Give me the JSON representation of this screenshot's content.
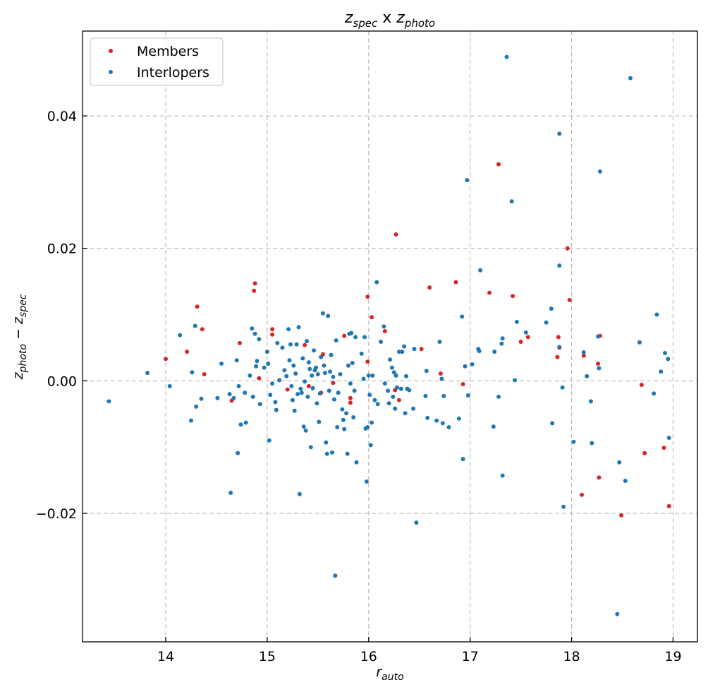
{
  "chart_data": {
    "type": "scatter",
    "title": {
      "base1": "z",
      "sub1": "spec",
      "mid": " x ",
      "base2": "z",
      "sub2": "photo"
    },
    "xlabel": {
      "base": "r",
      "sub": "auto"
    },
    "ylabel": {
      "base1": "z",
      "sub1": "photo",
      "mid": " − ",
      "base2": "z",
      "sub2": "spec"
    },
    "xlim": [
      13.18,
      19.24
    ],
    "ylim": [
      -0.0394,
      0.0528
    ],
    "xticks": [
      14,
      15,
      16,
      17,
      18,
      19
    ],
    "xtick_labels": [
      "14",
      "15",
      "16",
      "17",
      "18",
      "19"
    ],
    "yticks": [
      -0.02,
      0.0,
      0.02,
      0.04
    ],
    "ytick_labels": [
      "−0.02",
      "0.00",
      "0.02",
      "0.04"
    ],
    "grid": true,
    "legend_position": "top-left",
    "series": [
      {
        "name": "Members",
        "color": "#d62728",
        "points": [
          [
            14.0,
            0.0033
          ],
          [
            14.21,
            0.0044
          ],
          [
            14.31,
            0.0112
          ],
          [
            14.36,
            0.0078
          ],
          [
            14.38,
            0.001
          ],
          [
            14.65,
            -0.003
          ],
          [
            14.73,
            0.0057
          ],
          [
            14.88,
            0.0147
          ],
          [
            14.87,
            0.0136
          ],
          [
            14.92,
            0.0004
          ],
          [
            15.05,
            0.0078
          ],
          [
            15.05,
            0.007
          ],
          [
            15.2,
            -0.0013
          ],
          [
            15.37,
            0.0054
          ],
          [
            15.41,
            -0.0008
          ],
          [
            15.53,
            -0.0018
          ],
          [
            15.55,
            0.004
          ],
          [
            15.65,
            -0.0003
          ],
          [
            15.76,
            0.0068
          ],
          [
            15.82,
            -0.0033
          ],
          [
            15.82,
            -0.0026
          ],
          [
            15.99,
            0.0127
          ],
          [
            15.99,
            0.0029
          ],
          [
            16.03,
            0.0096
          ],
          [
            16.16,
            0.0075
          ],
          [
            16.27,
            0.0221
          ],
          [
            16.26,
            -0.0014
          ],
          [
            16.3,
            -0.0029
          ],
          [
            16.52,
            0.0048
          ],
          [
            16.6,
            0.0141
          ],
          [
            16.71,
            0.0011
          ],
          [
            16.86,
            0.0149
          ],
          [
            16.93,
            -0.0005
          ],
          [
            17.19,
            0.0133
          ],
          [
            17.28,
            0.0327
          ],
          [
            17.42,
            0.0128
          ],
          [
            17.5,
            0.0059
          ],
          [
            17.57,
            0.0066
          ],
          [
            17.86,
            0.0036
          ],
          [
            17.88,
            0.005
          ],
          [
            17.87,
            0.0066
          ],
          [
            17.96,
            0.02
          ],
          [
            17.98,
            0.0122
          ],
          [
            18.12,
            0.0038
          ],
          [
            18.28,
            0.0068
          ],
          [
            18.26,
            0.0026
          ],
          [
            18.27,
            -0.0146
          ],
          [
            18.1,
            -0.0172
          ],
          [
            18.49,
            -0.0203
          ],
          [
            18.69,
            -0.0006
          ],
          [
            18.72,
            -0.0109
          ],
          [
            18.91,
            -0.0101
          ],
          [
            18.96,
            -0.0189
          ]
        ]
      },
      {
        "name": "Interlopers",
        "color": "#1f77b4",
        "points": [
          [
            13.44,
            -0.0031
          ],
          [
            13.82,
            0.0012
          ],
          [
            14.04,
            -0.0008
          ],
          [
            14.14,
            0.0069
          ],
          [
            14.25,
            -0.006
          ],
          [
            14.26,
            0.0013
          ],
          [
            14.29,
            0.0083
          ],
          [
            14.3,
            -0.0039
          ],
          [
            14.35,
            -0.0027
          ],
          [
            14.51,
            -0.0026
          ],
          [
            14.55,
            0.0026
          ],
          [
            14.63,
            -0.002
          ],
          [
            14.64,
            -0.0169
          ],
          [
            14.67,
            -0.0026
          ],
          [
            14.7,
            0.0031
          ],
          [
            14.71,
            -0.0109
          ],
          [
            14.72,
            -0.0008
          ],
          [
            14.74,
            -0.0066
          ],
          [
            14.78,
            -0.0018
          ],
          [
            14.79,
            -0.0063
          ],
          [
            14.83,
            0.0008
          ],
          [
            14.85,
            0.0079
          ],
          [
            14.86,
            -0.0024
          ],
          [
            14.88,
            0.0071
          ],
          [
            14.89,
            0.0022
          ],
          [
            14.9,
            0.003
          ],
          [
            14.92,
            0.0063
          ],
          [
            14.93,
            -0.0035
          ],
          [
            14.97,
            0.002
          ],
          [
            15.0,
            0.0044
          ],
          [
            15.01,
            0.0026
          ],
          [
            15.02,
            -0.009
          ],
          [
            15.03,
            -0.0021
          ],
          [
            15.05,
            -0.0004
          ],
          [
            15.08,
            -0.0032
          ],
          [
            15.09,
            -0.0044
          ],
          [
            15.1,
            0.0057
          ],
          [
            15.12,
            0.0001
          ],
          [
            15.15,
            0.005
          ],
          [
            15.17,
            0.0016
          ],
          [
            15.19,
            0.0007
          ],
          [
            15.21,
            0.0078
          ],
          [
            15.22,
            0.0031
          ],
          [
            15.23,
            0.0055
          ],
          [
            15.24,
            -0.0008
          ],
          [
            15.25,
            -0.0029
          ],
          [
            15.26,
            0.0023
          ],
          [
            15.27,
            -0.0045
          ],
          [
            15.28,
            0.0011
          ],
          [
            15.29,
            0.0055
          ],
          [
            15.3,
            -0.002
          ],
          [
            15.31,
            0.0081
          ],
          [
            15.32,
            -0.0171
          ],
          [
            15.33,
            -0.0012
          ],
          [
            15.34,
            -0.0018
          ],
          [
            15.35,
            0.0034
          ],
          [
            15.36,
            -0.0069
          ],
          [
            15.37,
            -0.0001
          ],
          [
            15.38,
            -0.0075
          ],
          [
            15.39,
            0.006
          ],
          [
            15.4,
            -0.0024
          ],
          [
            15.41,
            0.0028
          ],
          [
            15.42,
            0.0018
          ],
          [
            15.43,
            -0.01
          ],
          [
            15.44,
            0.0008
          ],
          [
            15.45,
            -0.0011
          ],
          [
            15.46,
            0.0046
          ],
          [
            15.47,
            0.0016
          ],
          [
            15.48,
            0.002
          ],
          [
            15.49,
            -0.0034
          ],
          [
            15.5,
            0.001
          ],
          [
            15.51,
            -0.0062
          ],
          [
            15.52,
            -0.0019
          ],
          [
            15.53,
            0.0036
          ],
          [
            15.55,
            0.0102
          ],
          [
            15.56,
            0.0023
          ],
          [
            15.57,
            0.0012
          ],
          [
            15.58,
            -0.0093
          ],
          [
            15.59,
            -0.011
          ],
          [
            15.6,
            0.0098
          ],
          [
            15.61,
            -0.0015
          ],
          [
            15.62,
            0.0014
          ],
          [
            15.63,
            0.0039
          ],
          [
            15.64,
            -0.0108
          ],
          [
            15.65,
            0.0006
          ],
          [
            15.66,
            -0.0028
          ],
          [
            15.67,
            -0.0294
          ],
          [
            15.68,
            0.0061
          ],
          [
            15.69,
            -0.007
          ],
          [
            15.7,
            -0.0018
          ],
          [
            15.72,
            0.001
          ],
          [
            15.74,
            -0.0043
          ],
          [
            15.75,
            -0.0059
          ],
          [
            15.76,
            -0.0073
          ],
          [
            15.78,
            -0.0049
          ],
          [
            15.79,
            -0.011
          ],
          [
            15.8,
            0.0023
          ],
          [
            15.81,
            0.0071
          ],
          [
            15.82,
            -0.0004
          ],
          [
            15.83,
            0.0072
          ],
          [
            15.84,
            0.0027
          ],
          [
            15.85,
            -0.0055
          ],
          [
            15.86,
            -0.0015
          ],
          [
            15.87,
            0.0066
          ],
          [
            15.88,
            -0.0123
          ],
          [
            15.93,
            0.0041
          ],
          [
            15.95,
            0.0003
          ],
          [
            15.96,
            0.0066
          ],
          [
            15.97,
            -0.0072
          ],
          [
            15.98,
            -0.0152
          ],
          [
            15.99,
            -0.007
          ],
          [
            16.0,
            0.0008
          ],
          [
            16.01,
            -0.0021
          ],
          [
            16.02,
            -0.0097
          ],
          [
            16.03,
            -0.0063
          ],
          [
            16.04,
            0.0008
          ],
          [
            16.06,
            -0.0029
          ],
          [
            16.08,
            0.0149
          ],
          [
            16.09,
            -0.0035
          ],
          [
            16.12,
            0.0059
          ],
          [
            16.15,
            0.0082
          ],
          [
            16.16,
            -0.0004
          ],
          [
            16.19,
            -0.0015
          ],
          [
            16.2,
            -0.0034
          ],
          [
            16.21,
            0.0032
          ],
          [
            16.23,
            0.002
          ],
          [
            16.24,
            -0.0024
          ],
          [
            16.25,
            0.0013
          ],
          [
            16.26,
            -0.0042
          ],
          [
            16.27,
            0.0008
          ],
          [
            16.28,
            -0.001
          ],
          [
            16.3,
            0.0044
          ],
          [
            16.32,
            -0.0012
          ],
          [
            16.33,
            0.0044
          ],
          [
            16.35,
            0.0052
          ],
          [
            16.36,
            -0.0049
          ],
          [
            16.37,
            0.0007
          ],
          [
            16.38,
            -0.0012
          ],
          [
            16.4,
            -0.0014
          ],
          [
            16.44,
            -0.0042
          ],
          [
            16.45,
            0.0048
          ],
          [
            16.47,
            -0.0214
          ],
          [
            16.56,
            -0.0023
          ],
          [
            16.57,
            0.0015
          ],
          [
            16.58,
            -0.0056
          ],
          [
            16.67,
            -0.006
          ],
          [
            16.7,
            0.0059
          ],
          [
            16.72,
            0.0003
          ],
          [
            16.73,
            -0.0064
          ],
          [
            16.74,
            -0.0023
          ],
          [
            16.79,
            -0.007
          ],
          [
            16.89,
            -0.0057
          ],
          [
            16.92,
            0.0097
          ],
          [
            16.93,
            -0.0118
          ],
          [
            16.95,
            0.0022
          ],
          [
            16.97,
            0.0303
          ],
          [
            16.98,
            -0.0022
          ],
          [
            17.02,
            0.0025
          ],
          [
            17.08,
            0.0048
          ],
          [
            17.09,
            0.0045
          ],
          [
            17.1,
            0.0167
          ],
          [
            17.23,
            -0.0069
          ],
          [
            17.24,
            0.0044
          ],
          [
            17.28,
            -0.0024
          ],
          [
            17.31,
            0.0056
          ],
          [
            17.32,
            0.0064
          ],
          [
            17.32,
            -0.0143
          ],
          [
            17.36,
            0.0489
          ],
          [
            17.41,
            0.0271
          ],
          [
            17.44,
            0.0001
          ],
          [
            17.46,
            0.0089
          ],
          [
            17.55,
            0.0073
          ],
          [
            17.75,
            0.0088
          ],
          [
            17.8,
            0.0109
          ],
          [
            17.81,
            -0.0064
          ],
          [
            17.88,
            0.0373
          ],
          [
            17.88,
            0.0174
          ],
          [
            17.88,
            0.0051
          ],
          [
            17.91,
            -0.001
          ],
          [
            17.92,
            -0.019
          ],
          [
            18.02,
            -0.0092
          ],
          [
            18.12,
            0.0043
          ],
          [
            18.15,
            0.0007
          ],
          [
            18.19,
            -0.0031
          ],
          [
            18.2,
            -0.0094
          ],
          [
            18.26,
            0.0067
          ],
          [
            18.27,
            0.0019
          ],
          [
            18.28,
            0.0316
          ],
          [
            18.47,
            -0.0123
          ],
          [
            18.53,
            -0.0151
          ],
          [
            18.45,
            -0.0352
          ],
          [
            18.58,
            0.0457
          ],
          [
            18.67,
            0.0058
          ],
          [
            18.81,
            -0.0019
          ],
          [
            18.84,
            0.01
          ],
          [
            18.88,
            0.0014
          ],
          [
            18.92,
            0.0042
          ],
          [
            18.95,
            0.0033
          ],
          [
            18.96,
            -0.0086
          ]
        ]
      }
    ]
  }
}
